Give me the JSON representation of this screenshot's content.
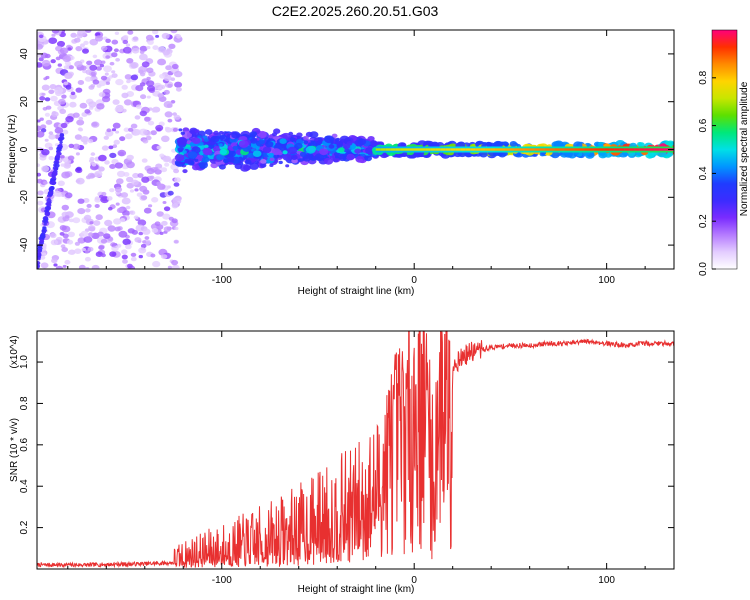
{
  "title": "C2E2.2025.260.20.51.G03",
  "chart_data": [
    {
      "type": "heatmap",
      "title": "C2E2.2025.260.20.51.G03",
      "xlabel": "Height of straight line (km)",
      "ylabel": "Frequency (Hz)",
      "xlim": [
        -196,
        135
      ],
      "ylim": [
        -50,
        50
      ],
      "x_ticks": [
        -100,
        0,
        100
      ],
      "y_ticks": [
        -40,
        -20,
        0,
        20,
        40
      ],
      "colorbar": {
        "label": "Normalized spectral amplitude",
        "range": [
          0,
          1
        ],
        "ticks": [
          "0.0",
          "0.2",
          "0.4",
          "0.6",
          "0.8"
        ],
        "colormap": [
          "#ffffff",
          "#e3ccff",
          "#b57bff",
          "#7a2cff",
          "#3c2cff",
          "#1f3cff",
          "#0096ff",
          "#00e0e6",
          "#00e87a",
          "#5de000",
          "#c8e600",
          "#ffd400",
          "#ff8a00",
          "#ff3000",
          "#ff007a"
        ]
      },
      "features": [
        {
          "region": "noise",
          "x_range": [
            -196,
            -122
          ],
          "freq_range": [
            -50,
            50
          ],
          "level": 0.15
        },
        {
          "region": "weak streak",
          "x_range": [
            -196,
            -183
          ],
          "freq_range": [
            -48,
            6
          ],
          "level": 0.25
        },
        {
          "region": "scattered band",
          "x_range": [
            -122,
            -20
          ],
          "freq_range": [
            -12,
            12
          ],
          "level": 0.45
        },
        {
          "region": "signal line",
          "x_range": [
            -20,
            135
          ],
          "freq_range": [
            -2,
            2
          ],
          "level": 0.95
        }
      ]
    },
    {
      "type": "line",
      "xlabel": "Height of straight line (km)",
      "ylabel": "SNR (10 * v/v)",
      "y_multiplier": "(x10^4)",
      "xlim": [
        -196,
        135
      ],
      "ylim": [
        0,
        1.15
      ],
      "x_ticks": [
        -100,
        0,
        100
      ],
      "y_ticks": [
        0.2,
        0.4,
        0.6,
        0.8,
        1.0
      ],
      "color": "#e83030",
      "series": [
        {
          "name": "SNR",
          "x": [
            -196,
            -170,
            -140,
            -125,
            -115,
            -105,
            -95,
            -85,
            -78,
            -70,
            -62,
            -55,
            -48,
            -40,
            -33,
            -26,
            -20,
            -15,
            -12,
            -8,
            -4,
            0,
            4,
            8,
            10,
            12,
            14,
            18,
            22,
            26,
            30,
            35,
            40,
            50,
            60,
            70,
            80,
            90,
            100,
            110,
            120,
            135
          ],
          "values": [
            0.02,
            0.02,
            0.025,
            0.03,
            0.05,
            0.06,
            0.07,
            0.08,
            0.09,
            0.11,
            0.13,
            0.15,
            0.18,
            0.2,
            0.23,
            0.26,
            0.32,
            0.48,
            0.6,
            0.68,
            0.72,
            0.78,
            0.85,
            0.75,
            0.2,
            0.8,
            0.88,
            0.95,
            1.0,
            1.03,
            1.05,
            1.06,
            1.07,
            1.08,
            1.08,
            1.09,
            1.09,
            1.1,
            1.09,
            1.08,
            1.09,
            1.09
          ]
        }
      ]
    }
  ]
}
